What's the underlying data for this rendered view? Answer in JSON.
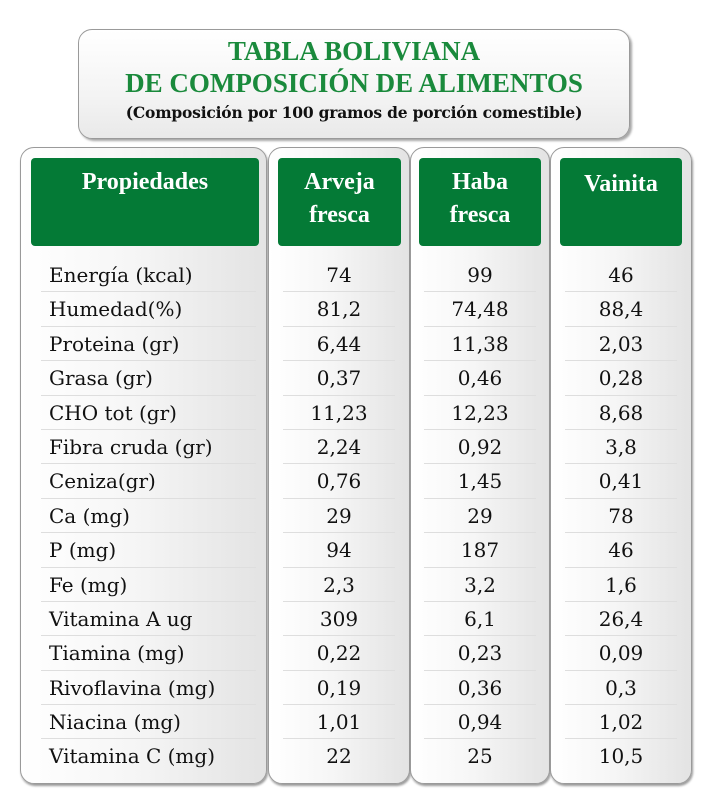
{
  "title": {
    "line1": "TABLA BOLIVIANA",
    "line2": "DE COMPOSICIÓN DE ALIMENTOS",
    "subtitle": "(Composición por 100 gramos de porción comestible)"
  },
  "colors": {
    "header_green": "#047a36",
    "title_green": "#1a8a3c"
  },
  "table": {
    "columns": [
      "Propiedades",
      "Arveja\nfresca",
      "Haba\nfresca",
      "Vainita"
    ],
    "properties": [
      "Energía (kcal)",
      "Humedad(%)",
      "Proteina (gr)",
      "Grasa (gr)",
      "CHO tot (gr)",
      "Fibra cruda (gr)",
      "Ceniza(gr)",
      "Ca (mg)",
      "P (mg)",
      "Fe (mg)",
      "Vitamina A ug",
      "Tiamina (mg)",
      "Rivoflavina (mg)",
      "Niacina (mg)",
      "Vitamina C (mg)"
    ],
    "arveja_fresca": [
      "74",
      "81,2",
      "6,44",
      "0,37",
      "11,23",
      "2,24",
      "0,76",
      "29",
      "94",
      "2,3",
      "309",
      "0,22",
      "0,19",
      "1,01",
      "22"
    ],
    "haba_fresca": [
      "99",
      "74,48",
      "11,38",
      "0,46",
      "12,23",
      "0,92",
      "1,45",
      "29",
      "187",
      "3,2",
      "6,1",
      "0,23",
      "0,36",
      "0,94",
      "25"
    ],
    "vainita": [
      "46",
      "88,4",
      "2,03",
      "0,28",
      "8,68",
      "3,8",
      "0,41",
      "78",
      "46",
      "1,6",
      "26,4",
      "0,09",
      "0,3",
      "1,02",
      "10,5"
    ]
  }
}
